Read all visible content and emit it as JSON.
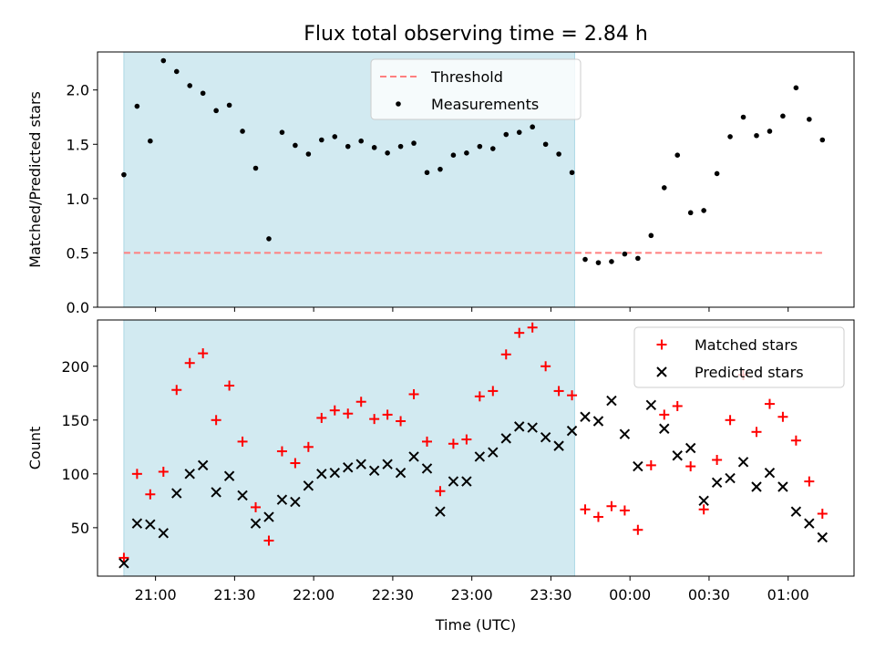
{
  "figure": {
    "title": "Flux total observing time = 2.84 h",
    "xlabel": "Time (UTC)",
    "x_tick_labels": [
      "21:00",
      "21:30",
      "22:00",
      "22:30",
      "23:00",
      "23:30",
      "00:00",
      "00:30",
      "01:00"
    ],
    "colors": {
      "shade": "#add8e6",
      "threshold": "#ff7f7f",
      "measurement": "#000000",
      "matched": "#ff0000",
      "predicted": "#000000"
    }
  },
  "chart_data": [
    {
      "type": "scatter",
      "ylabel": "Matched/Predicted stars",
      "xlim": [
        "20:38",
        "01:25"
      ],
      "ylim": [
        0,
        2.35
      ],
      "y_ticks": [
        0.0,
        0.5,
        1.0,
        1.5,
        2.0
      ],
      "y_tick_labels": [
        "0.0",
        "0.5",
        "1.0",
        "1.5",
        "2.0"
      ],
      "shaded_region": {
        "from": "20:48",
        "to": "23:39"
      },
      "legend": {
        "position": "top-center",
        "entries": [
          "Threshold",
          "Measurements"
        ]
      },
      "series": [
        {
          "name": "Threshold",
          "type": "line",
          "style": "dashed",
          "x": [
            "20:48",
            "01:14"
          ],
          "y": [
            0.5,
            0.5
          ]
        },
        {
          "name": "Measurements",
          "type": "scatter",
          "marker": "dot",
          "x": [
            "20:48",
            "20:53",
            "20:58",
            "21:03",
            "21:08",
            "21:13",
            "21:18",
            "21:23",
            "21:28",
            "21:33",
            "21:38",
            "21:43",
            "21:48",
            "21:53",
            "21:58",
            "22:03",
            "22:08",
            "22:13",
            "22:18",
            "22:23",
            "22:28",
            "22:33",
            "22:38",
            "22:43",
            "22:48",
            "22:53",
            "22:58",
            "23:03",
            "23:08",
            "23:13",
            "23:18",
            "23:23",
            "23:28",
            "23:33",
            "23:38",
            "23:43",
            "23:48",
            "23:53",
            "23:58",
            "00:03",
            "00:08",
            "00:13",
            "00:18",
            "00:23",
            "00:28",
            "00:33",
            "00:38",
            "00:43",
            "00:48",
            "00:53",
            "00:58",
            "01:03",
            "01:08",
            "01:13"
          ],
          "y": [
            1.22,
            1.85,
            1.53,
            2.27,
            2.17,
            2.04,
            1.97,
            1.81,
            1.86,
            1.62,
            1.28,
            0.63,
            1.61,
            1.49,
            1.41,
            1.54,
            1.57,
            1.48,
            1.53,
            1.47,
            1.42,
            1.48,
            1.51,
            1.24,
            1.27,
            1.4,
            1.42,
            1.48,
            1.46,
            1.59,
            1.61,
            1.66,
            1.5,
            1.41,
            1.24,
            0.44,
            0.41,
            0.42,
            0.49,
            0.45,
            0.66,
            1.1,
            1.4,
            0.87,
            0.89,
            1.23,
            1.57,
            1.75,
            1.58,
            1.62,
            1.76,
            2.02,
            1.73,
            1.54
          ]
        }
      ]
    },
    {
      "type": "scatter",
      "ylabel": "Count",
      "xlim": [
        "20:38",
        "01:25"
      ],
      "ylim": [
        5,
        243
      ],
      "y_ticks": [
        50,
        100,
        150,
        200
      ],
      "y_tick_labels": [
        "50",
        "100",
        "150",
        "200"
      ],
      "shaded_region": {
        "from": "20:48",
        "to": "23:39"
      },
      "legend": {
        "position": "top-right",
        "entries": [
          "Matched stars",
          "Predicted stars"
        ]
      },
      "series": [
        {
          "name": "Matched stars",
          "marker": "plus",
          "x": [
            "20:48",
            "20:53",
            "20:58",
            "21:03",
            "21:08",
            "21:13",
            "21:18",
            "21:23",
            "21:28",
            "21:33",
            "21:38",
            "21:43",
            "21:48",
            "21:53",
            "21:58",
            "22:03",
            "22:08",
            "22:13",
            "22:18",
            "22:23",
            "22:28",
            "22:33",
            "22:38",
            "22:43",
            "22:48",
            "22:53",
            "22:58",
            "23:03",
            "23:08",
            "23:13",
            "23:18",
            "23:23",
            "23:28",
            "23:33",
            "23:38",
            "23:43",
            "23:48",
            "23:53",
            "23:58",
            "00:03",
            "00:08",
            "00:13",
            "00:18",
            "00:23",
            "00:28",
            "00:33",
            "00:38",
            "00:43",
            "00:48",
            "00:53",
            "00:58",
            "01:03",
            "01:08",
            "01:13"
          ],
          "y": [
            22,
            100,
            81,
            102,
            178,
            203,
            212,
            150,
            182,
            130,
            69,
            38,
            121,
            110,
            125,
            152,
            159,
            156,
            167,
            151,
            155,
            149,
            174,
            130,
            84,
            128,
            132,
            172,
            177,
            211,
            231,
            236,
            200,
            177,
            173,
            67,
            60,
            70,
            66,
            48,
            108,
            155,
            163,
            107,
            67,
            113,
            150,
            192,
            139,
            165,
            153,
            131,
            93,
            63
          ]
        },
        {
          "name": "Predicted stars",
          "marker": "x",
          "x": [
            "20:48",
            "20:53",
            "20:58",
            "21:03",
            "21:08",
            "21:13",
            "21:18",
            "21:23",
            "21:28",
            "21:33",
            "21:38",
            "21:43",
            "21:48",
            "21:53",
            "21:58",
            "22:03",
            "22:08",
            "22:13",
            "22:18",
            "22:23",
            "22:28",
            "22:33",
            "22:38",
            "22:43",
            "22:48",
            "22:53",
            "22:58",
            "23:03",
            "23:08",
            "23:13",
            "23:18",
            "23:23",
            "23:28",
            "23:33",
            "23:38",
            "23:43",
            "23:48",
            "23:53",
            "23:58",
            "00:03",
            "00:08",
            "00:13",
            "00:18",
            "00:23",
            "00:28",
            "00:33",
            "00:38",
            "00:43",
            "00:48",
            "00:53",
            "00:58",
            "01:03",
            "01:08",
            "01:13"
          ],
          "y": [
            17,
            54,
            53,
            45,
            82,
            100,
            108,
            83,
            98,
            80,
            54,
            60,
            76,
            74,
            89,
            100,
            101,
            106,
            109,
            103,
            109,
            101,
            116,
            105,
            65,
            93,
            93,
            116,
            120,
            133,
            144,
            143,
            134,
            126,
            140,
            153,
            149,
            168,
            137,
            107,
            164,
            142,
            117,
            124,
            75,
            92,
            96,
            111,
            88,
            101,
            88,
            65,
            54,
            41
          ]
        }
      ]
    }
  ]
}
